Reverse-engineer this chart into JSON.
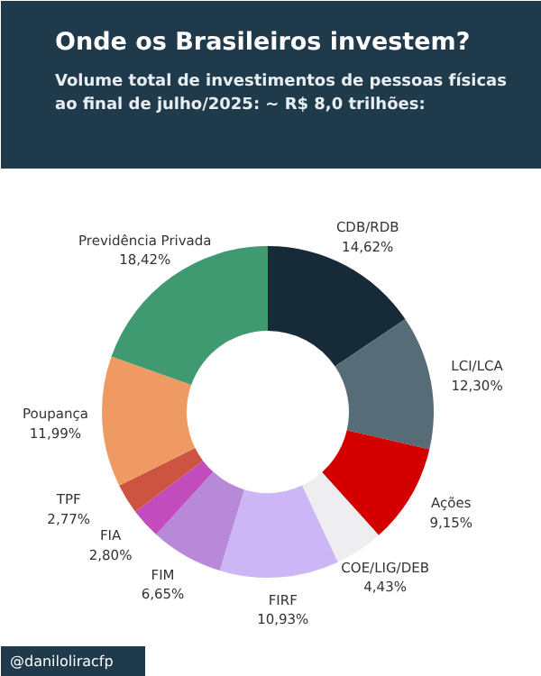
{
  "chart_data": {
    "type": "donut",
    "title": "Onde os Brasileiros investem?",
    "subtitle": "Volume total de investimentos de pessoas físicas ao final de julho/2025:  ~ R$ 8,0 trilhões:",
    "categories": [
      "CDB/RDB",
      "LCI/LCA",
      "Ações",
      "COE/LIG/DEB",
      "FIRF",
      "FIM",
      "FIA",
      "TPF",
      "Poupança",
      "Previdência Privada"
    ],
    "values": [
      14.62,
      12.3,
      9.15,
      4.43,
      10.93,
      6.65,
      2.8,
      2.77,
      11.99,
      18.42
    ],
    "colors": [
      "#172a38",
      "#566c77",
      "#d40000",
      "#eeeef0",
      "#cdb6f6",
      "#b889d9",
      "#c24cbd",
      "#cc5441",
      "#ef9a62",
      "#3f9a72"
    ],
    "value_labels": [
      "14,62%",
      "12,30%",
      "9,15%",
      "4,43%",
      "10,93%",
      "6,65%",
      "2,80%",
      "2,77%",
      "11,99%",
      "18,42%"
    ],
    "annotations": [
      "@daniloliracfp"
    ]
  }
}
